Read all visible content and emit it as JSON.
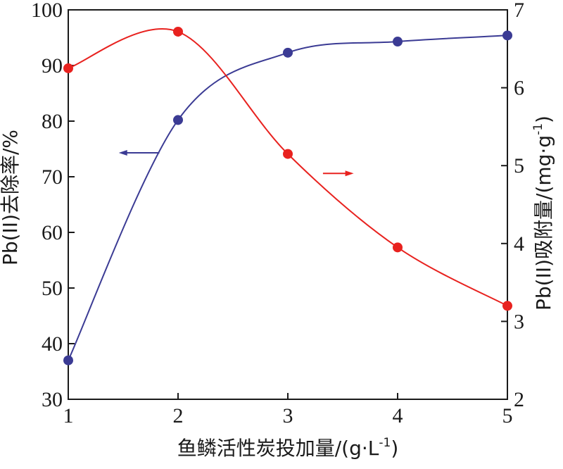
{
  "chart_data": {
    "type": "line",
    "title": "",
    "xlabel": "鱼鳞活性炭投加量/(g·L",
    "xlabel_sup": "-1",
    "xlabel_end": ")",
    "ylabel_left": "Pb(II)去除率/%",
    "ylabel_right": "Pb(II)吸附量/(mg·g",
    "ylabel_right_sup": "-1",
    "ylabel_right_end": ")",
    "xlim": [
      1,
      5
    ],
    "ylim_left": [
      30,
      100
    ],
    "ylim_right": [
      2,
      7
    ],
    "x_ticks": [
      1,
      2,
      3,
      4,
      5
    ],
    "y_left_ticks": [
      30,
      40,
      50,
      60,
      70,
      80,
      90,
      100
    ],
    "y_right_ticks": [
      2,
      3,
      4,
      5,
      6,
      7
    ],
    "grid": false,
    "series": [
      {
        "axis": "left",
        "color": "#3b3b94",
        "x": [
          1,
          2,
          3,
          4,
          5
        ],
        "y": [
          37.0,
          80.2,
          92.3,
          94.3,
          95.4
        ],
        "arrow": "left"
      },
      {
        "axis": "right",
        "color": "#e8221f",
        "x": [
          1,
          2,
          3,
          4,
          5
        ],
        "y": [
          6.25,
          6.72,
          5.15,
          3.95,
          3.2
        ],
        "arrow": "right"
      }
    ]
  }
}
